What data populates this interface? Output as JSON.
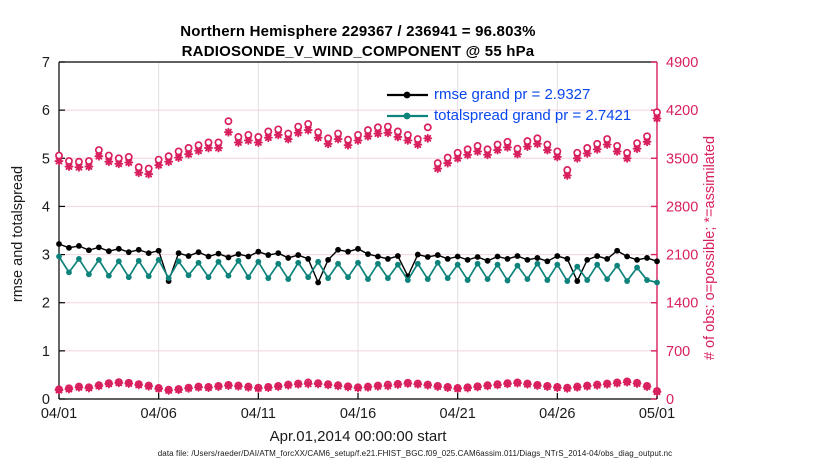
{
  "footer": {
    "datafile": "data file: /Users/raeder/DAI/ATM_forcXX/CAM6_setup/f.e21.FHIST_BGC.f09_025.CAM6assim.011/Diags_NTrS_2014-04/obs_diag_output.nc"
  },
  "colors": {
    "pink": "#d9205f",
    "teal": "#0e837c",
    "black": "#000000",
    "legend_blue": "#0a46ef",
    "grid_horizontal": "#f3d2de",
    "grid_vertical": "#e4dfe2"
  },
  "chart_data": {
    "type": "line",
    "title": "Northern Hemisphere 229367 / 236941 = 96.803%",
    "subtitle": "RADIOSONDE_V_WIND_COMPONENT @ 55 hPa",
    "left_axis": {
      "label": "rmse and totalspread",
      "range": [
        0,
        7
      ],
      "ticks": [
        0,
        1,
        2,
        3,
        4,
        5,
        6,
        7
      ]
    },
    "right_axis": {
      "label": "# of obs: o=possible; *=assimilated",
      "range": [
        0,
        4900
      ],
      "ticks": [
        0,
        700,
        1400,
        2100,
        2800,
        3500,
        4200,
        4900
      ]
    },
    "x_axis": {
      "label": "Apr.01,2014 00:00:00 start",
      "range_days": [
        0,
        30
      ],
      "tick_days": [
        0,
        5,
        10,
        15,
        20,
        25,
        30
      ],
      "tick_labels": [
        "04/01",
        "04/06",
        "04/11",
        "04/16",
        "04/21",
        "04/26",
        "05/01"
      ]
    },
    "legend": [
      {
        "label": "rmse grand pr = 2.9327",
        "color": "#000000"
      },
      {
        "label": "totalspread grand pr = 2.7421",
        "color": "#0e837c"
      }
    ],
    "grid": true,
    "x_days": [
      0,
      0.5,
      1,
      1.5,
      2,
      2.5,
      3,
      3.5,
      4,
      4.5,
      5,
      5.5,
      6,
      6.5,
      7,
      7.5,
      8,
      8.5,
      9,
      9.5,
      10,
      10.5,
      11,
      11.5,
      12,
      12.5,
      13,
      13.5,
      14,
      14.5,
      15,
      15.5,
      16,
      16.5,
      17,
      17.5,
      18,
      18.5,
      19,
      19.5,
      20,
      20.5,
      21,
      21.5,
      22,
      22.5,
      23,
      23.5,
      24,
      24.5,
      25,
      25.5,
      26,
      26.5,
      27,
      27.5,
      28,
      28.5,
      29,
      29.5,
      30
    ],
    "series": {
      "rmse": {
        "axis": "left",
        "values": [
          3.22,
          3.14,
          3.18,
          3.09,
          3.15,
          3.07,
          3.12,
          3.05,
          3.1,
          3.03,
          3.08,
          2.45,
          3.03,
          2.97,
          3.05,
          2.96,
          3.02,
          2.94,
          3.01,
          2.96,
          3.06,
          2.99,
          3.03,
          2.93,
          2.99,
          2.91,
          2.42,
          2.89,
          3.1,
          3.06,
          3.12,
          3.01,
          2.96,
          2.91,
          2.97,
          2.55,
          3.0,
          2.95,
          2.99,
          2.91,
          2.96,
          2.89,
          2.95,
          2.87,
          2.96,
          2.91,
          2.97,
          2.89,
          2.93,
          2.86,
          2.97,
          2.91,
          2.45,
          2.89,
          2.97,
          2.91,
          3.08,
          2.96,
          2.89,
          2.93,
          2.86
        ]
      },
      "totalspread": {
        "axis": "left",
        "values": [
          2.96,
          2.63,
          2.91,
          2.59,
          2.89,
          2.56,
          2.86,
          2.53,
          2.87,
          2.55,
          2.89,
          2.51,
          2.86,
          2.57,
          2.83,
          2.53,
          2.85,
          2.56,
          2.87,
          2.53,
          2.85,
          2.51,
          2.81,
          2.49,
          2.83,
          2.53,
          2.85,
          2.51,
          2.81,
          2.53,
          2.83,
          2.49,
          2.81,
          2.51,
          2.79,
          2.47,
          2.81,
          2.49,
          2.83,
          2.51,
          2.79,
          2.47,
          2.81,
          2.49,
          2.79,
          2.46,
          2.77,
          2.49,
          2.81,
          2.47,
          2.79,
          2.45,
          2.75,
          2.47,
          2.79,
          2.49,
          2.77,
          2.45,
          2.73,
          2.47,
          2.42
        ]
      },
      "possible": {
        "axis": "right",
        "marker": "o",
        "values": [
          3540,
          3460,
          3450,
          3460,
          3620,
          3540,
          3500,
          3520,
          3370,
          3350,
          3480,
          3530,
          3600,
          3650,
          3690,
          3730,
          3730,
          4040,
          3810,
          3840,
          3810,
          3890,
          3920,
          3860,
          3960,
          4000,
          3880,
          3790,
          3860,
          3770,
          3840,
          3910,
          3950,
          3960,
          3890,
          3840,
          3780,
          3950,
          3430,
          3510,
          3580,
          3630,
          3680,
          3630,
          3700,
          3740,
          3640,
          3750,
          3790,
          3700,
          3600,
          3330,
          3580,
          3650,
          3710,
          3780,
          3680,
          3580,
          3720,
          3820,
          4170
        ]
      },
      "assimilated": {
        "axis": "right",
        "marker": "*",
        "values": [
          3460,
          3380,
          3370,
          3380,
          3530,
          3450,
          3420,
          3440,
          3290,
          3270,
          3400,
          3450,
          3510,
          3560,
          3610,
          3650,
          3650,
          3880,
          3730,
          3760,
          3730,
          3800,
          3840,
          3780,
          3870,
          3910,
          3800,
          3710,
          3780,
          3690,
          3760,
          3820,
          3860,
          3870,
          3810,
          3760,
          3700,
          3790,
          3350,
          3430,
          3500,
          3550,
          3600,
          3550,
          3620,
          3660,
          3560,
          3670,
          3710,
          3620,
          3520,
          3250,
          3500,
          3570,
          3630,
          3700,
          3600,
          3500,
          3640,
          3740,
          4080
        ]
      },
      "possible_offsynoptic": {
        "axis": "right",
        "marker": "o",
        "values": [
          140,
          155,
          180,
          170,
          200,
          230,
          245,
          235,
          215,
          195,
          160,
          135,
          145,
          165,
          180,
          175,
          190,
          205,
          195,
          180,
          165,
          175,
          190,
          210,
          225,
          240,
          230,
          215,
          200,
          185,
          170,
          180,
          195,
          210,
          220,
          235,
          225,
          210,
          190,
          175,
          160,
          170,
          185,
          200,
          215,
          230,
          240,
          225,
          205,
          190,
          175,
          165,
          180,
          195,
          210,
          225,
          240,
          255,
          235,
          190,
          115
        ]
      },
      "assimilated_offsynoptic": {
        "axis": "right",
        "marker": "*",
        "values": [
          130,
          145,
          170,
          160,
          190,
          220,
          235,
          225,
          205,
          185,
          150,
          125,
          135,
          155,
          170,
          165,
          180,
          195,
          185,
          170,
          155,
          165,
          180,
          200,
          215,
          220,
          220,
          205,
          190,
          175,
          160,
          170,
          185,
          190,
          210,
          225,
          215,
          200,
          180,
          165,
          150,
          160,
          175,
          190,
          205,
          220,
          230,
          215,
          195,
          180,
          165,
          155,
          170,
          185,
          200,
          215,
          230,
          245,
          225,
          180,
          105
        ]
      }
    }
  }
}
